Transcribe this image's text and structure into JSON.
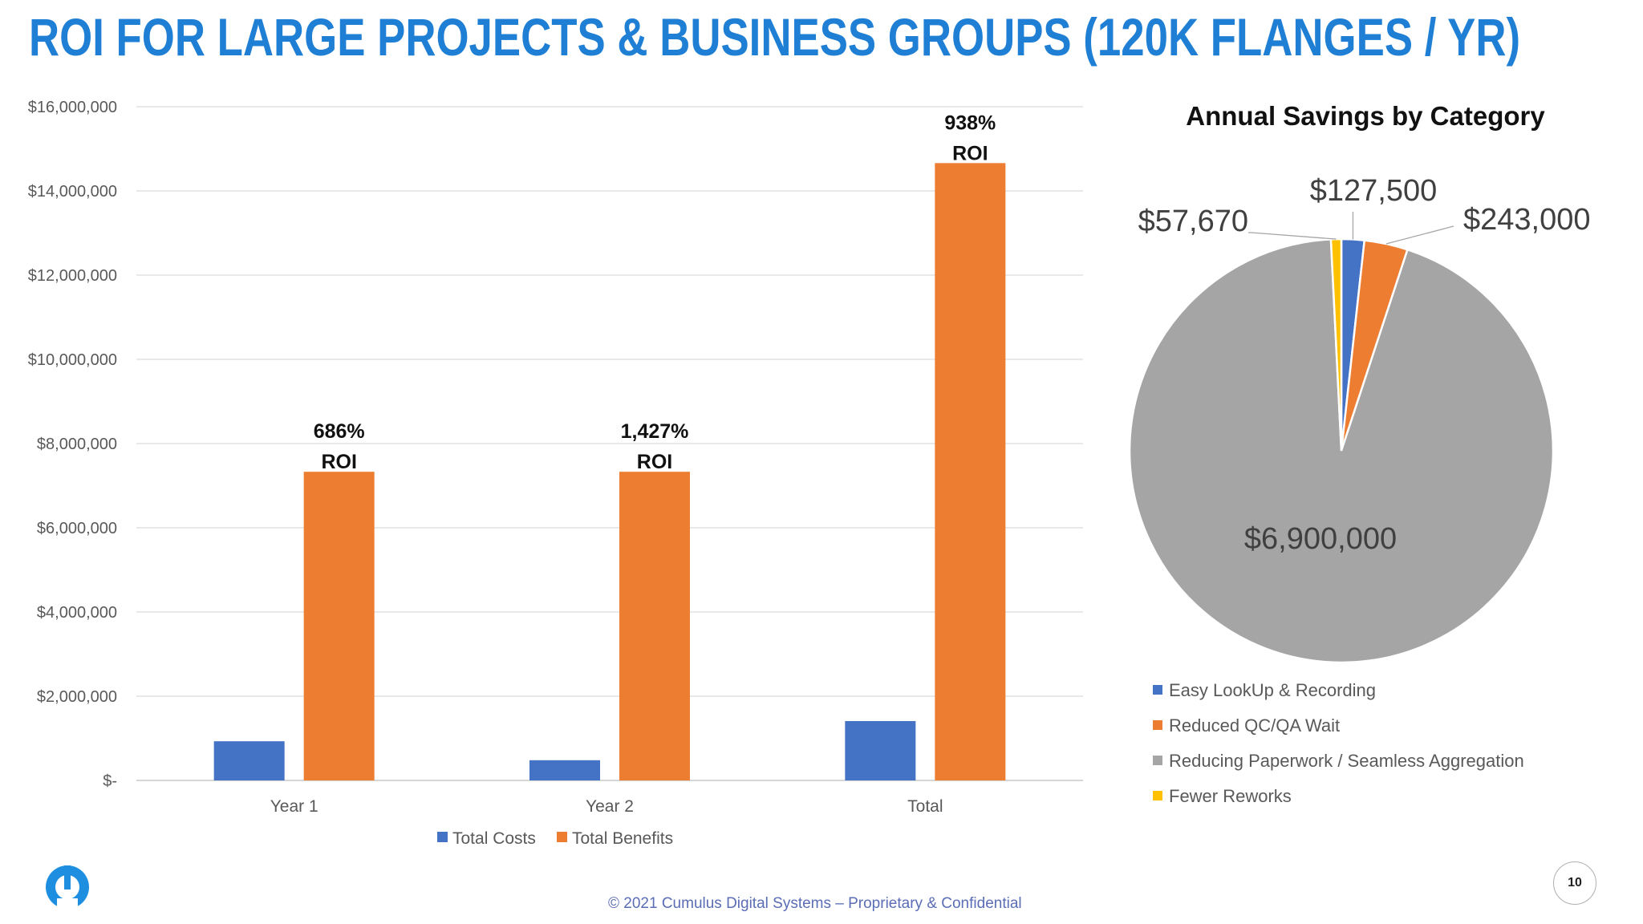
{
  "slide": {
    "title": "ROI FOR LARGE PROJECTS & BUSINESS GROUPS (120K FLANGES / YR)",
    "footer": "© 2021 Cumulus Digital Systems – Proprietary & Confidential",
    "page_number": "10",
    "logo_icon": "cumulus-logo-icon"
  },
  "colors": {
    "title": "#1e7fd4",
    "costs": "#4472c4",
    "benefits": "#ed7d31",
    "paperwork": "#a5a5a5",
    "reworks": "#ffc000"
  },
  "chart_data": [
    {
      "type": "bar",
      "title": "",
      "categories": [
        "Year 1",
        "Year 2",
        "Total"
      ],
      "series": [
        {
          "name": "Total Costs",
          "values": [
            930000,
            480000,
            1410000
          ]
        },
        {
          "name": "Total Benefits",
          "values": [
            7330000,
            7330000,
            14660000
          ]
        }
      ],
      "roi_labels": [
        "686% ROI",
        "1,427% ROI",
        "938% ROI"
      ],
      "y_ticks": [
        0,
        2000000,
        4000000,
        6000000,
        8000000,
        10000000,
        12000000,
        14000000,
        16000000
      ],
      "y_tick_labels": [
        "$-",
        "$2,000,000",
        "$4,000,000",
        "$6,000,000",
        "$8,000,000",
        "$10,000,000",
        "$12,000,000",
        "$14,000,000",
        "$16,000,000"
      ],
      "ylim": [
        0,
        16000000
      ],
      "xlabel": "",
      "ylabel": "",
      "grid": true,
      "legend": "bottom"
    },
    {
      "type": "pie",
      "title": "Annual Savings by Category",
      "slices": [
        {
          "name": "Easy LookUp & Recording",
          "value": 127500,
          "label": "$127,500"
        },
        {
          "name": "Reduced QC/QA Wait",
          "value": 243000,
          "label": "$243,000"
        },
        {
          "name": "Reducing Paperwork / Seamless Aggregation",
          "value": 6900000,
          "label": "$6,900,000"
        },
        {
          "name": "Fewer Reworks",
          "value": 57670,
          "label": "$57,670"
        }
      ],
      "legend": "bottom-left"
    }
  ]
}
